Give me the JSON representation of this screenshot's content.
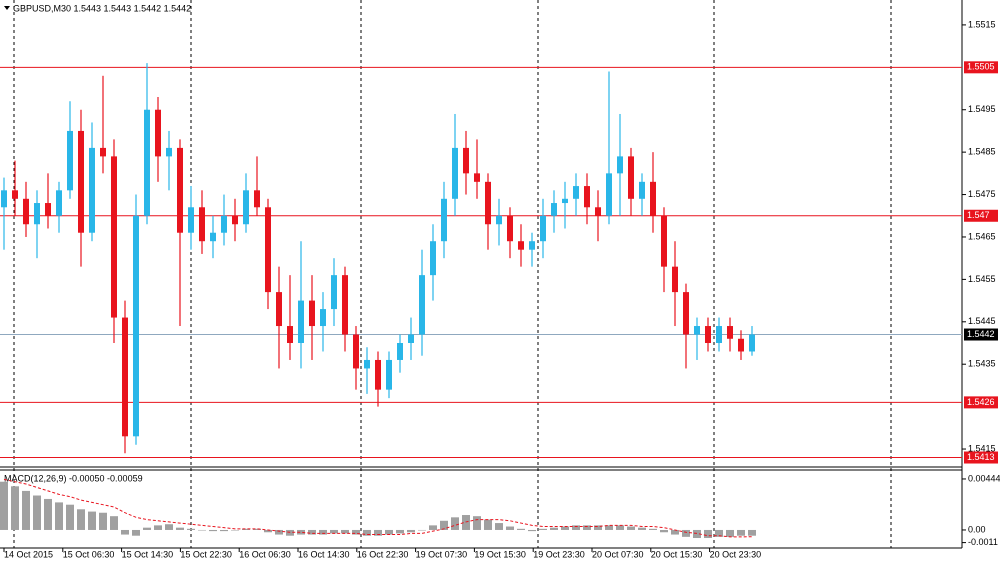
{
  "chart_data": {
    "type": "candlestick",
    "title": "GBPUSD,M30  1.5443 1.5443 1.5442 1.5442",
    "bull_color": "#29b6e8",
    "bear_color": "#e8141e",
    "ylim": [
      1.5411,
      1.55204
    ],
    "yticks": [
      1.5515,
      1.5495,
      1.5485,
      1.5475,
      1.5465,
      1.5455,
      1.5445,
      1.5435,
      1.5415
    ],
    "levels": [
      1.5505,
      1.547,
      1.5426,
      1.5413
    ],
    "level_color": "#e8141e",
    "current_price": 1.5442,
    "x_labels": [
      "14 Oct 2015",
      "15 Oct 06:30",
      "15 Oct 14:30",
      "15 Oct 22:30",
      "16 Oct 06:30",
      "16 Oct 14:30",
      "16 Oct 22:30",
      "19 Oct 07:30",
      "19 Oct 15:30",
      "19 Oct 23:30",
      "20 Oct 07:30",
      "20 Oct 15:30",
      "20 Oct 23:30"
    ],
    "ohlc": [
      [
        1.5472,
        1.5479,
        1.5462,
        1.5476
      ],
      [
        1.5476,
        1.5483,
        1.547,
        1.5474
      ],
      [
        1.5474,
        1.5478,
        1.5465,
        1.5468
      ],
      [
        1.5468,
        1.5476,
        1.546,
        1.5473
      ],
      [
        1.5473,
        1.548,
        1.5467,
        1.547
      ],
      [
        1.547,
        1.5478,
        1.5466,
        1.5476
      ],
      [
        1.5476,
        1.5497,
        1.5474,
        1.549
      ],
      [
        1.549,
        1.5495,
        1.5458,
        1.5466
      ],
      [
        1.5466,
        1.5492,
        1.5464,
        1.5486
      ],
      [
        1.5486,
        1.5503,
        1.548,
        1.5484
      ],
      [
        1.5484,
        1.5488,
        1.544,
        1.5446
      ],
      [
        1.5446,
        1.545,
        1.5414,
        1.5418
      ],
      [
        1.5418,
        1.5475,
        1.5416,
        1.547
      ],
      [
        1.547,
        1.5506,
        1.5468,
        1.5495
      ],
      [
        1.5495,
        1.5498,
        1.5478,
        1.5484
      ],
      [
        1.5484,
        1.549,
        1.5476,
        1.5486
      ],
      [
        1.5486,
        1.5488,
        1.5444,
        1.5466
      ],
      [
        1.5466,
        1.5477,
        1.5462,
        1.5472
      ],
      [
        1.5472,
        1.5476,
        1.5461,
        1.5464
      ],
      [
        1.5464,
        1.547,
        1.546,
        1.5466
      ],
      [
        1.5466,
        1.5475,
        1.5463,
        1.547
      ],
      [
        1.547,
        1.5474,
        1.5464,
        1.5468
      ],
      [
        1.5468,
        1.548,
        1.5466,
        1.5476
      ],
      [
        1.5476,
        1.5484,
        1.547,
        1.5472
      ],
      [
        1.5472,
        1.5474,
        1.5448,
        1.5452
      ],
      [
        1.5452,
        1.5458,
        1.5434,
        1.5444
      ],
      [
        1.5444,
        1.5456,
        1.5436,
        1.544
      ],
      [
        1.544,
        1.5464,
        1.5434,
        1.545
      ],
      [
        1.545,
        1.5456,
        1.5436,
        1.5444
      ],
      [
        1.5444,
        1.5452,
        1.5438,
        1.5448
      ],
      [
        1.5448,
        1.546,
        1.5444,
        1.5456
      ],
      [
        1.5456,
        1.5458,
        1.5438,
        1.5442
      ],
      [
        1.5442,
        1.5444,
        1.5429,
        1.5434
      ],
      [
        1.5434,
        1.5439,
        1.5428,
        1.5436
      ],
      [
        1.5436,
        1.5438,
        1.5425,
        1.5429
      ],
      [
        1.5429,
        1.5438,
        1.5427,
        1.5436
      ],
      [
        1.5436,
        1.5442,
        1.5433,
        1.544
      ],
      [
        1.544,
        1.5446,
        1.5436,
        1.5442
      ],
      [
        1.5442,
        1.5462,
        1.5437,
        1.5456
      ],
      [
        1.5456,
        1.5468,
        1.545,
        1.5464
      ],
      [
        1.5464,
        1.5478,
        1.546,
        1.5474
      ],
      [
        1.5474,
        1.5494,
        1.547,
        1.5486
      ],
      [
        1.5486,
        1.549,
        1.5475,
        1.548
      ],
      [
        1.548,
        1.5488,
        1.5474,
        1.5478
      ],
      [
        1.5478,
        1.548,
        1.5462,
        1.5468
      ],
      [
        1.5468,
        1.5474,
        1.5463,
        1.547
      ],
      [
        1.547,
        1.5472,
        1.546,
        1.5464
      ],
      [
        1.5464,
        1.5468,
        1.5458,
        1.5462
      ],
      [
        1.5462,
        1.5466,
        1.5458,
        1.5464
      ],
      [
        1.5464,
        1.5474,
        1.546,
        1.547
      ],
      [
        1.547,
        1.5476,
        1.5466,
        1.5473
      ],
      [
        1.5473,
        1.5478,
        1.5467,
        1.5474
      ],
      [
        1.5474,
        1.548,
        1.547,
        1.5477
      ],
      [
        1.5477,
        1.548,
        1.5468,
        1.5472
      ],
      [
        1.5472,
        1.5476,
        1.5464,
        1.547
      ],
      [
        1.547,
        1.5504,
        1.5468,
        1.548
      ],
      [
        1.548,
        1.5494,
        1.547,
        1.5484
      ],
      [
        1.5484,
        1.5486,
        1.547,
        1.5474
      ],
      [
        1.5474,
        1.548,
        1.547,
        1.5478
      ],
      [
        1.5478,
        1.5485,
        1.5466,
        1.547
      ],
      [
        1.547,
        1.5472,
        1.5452,
        1.5458
      ],
      [
        1.5458,
        1.5464,
        1.5444,
        1.5452
      ],
      [
        1.5452,
        1.5454,
        1.5434,
        1.5442
      ],
      [
        1.5442,
        1.5446,
        1.5436,
        1.5444
      ],
      [
        1.5444,
        1.5446,
        1.5438,
        1.544
      ],
      [
        1.544,
        1.5446,
        1.5438,
        1.5444
      ],
      [
        1.5444,
        1.5446,
        1.5438,
        1.5441
      ],
      [
        1.5441,
        1.5443,
        1.5436,
        1.5438
      ],
      [
        1.5438,
        1.5444,
        1.5437,
        1.5442
      ]
    ],
    "macd": {
      "label": "MACD(12,26,9) -0.00050 -0.00059",
      "ylim": [
        -0.00157,
        0.00522
      ],
      "yticks": [
        0.00444,
        {
          "value": 0,
          "label": "0.00"
        },
        -0.0011
      ],
      "hist_color": "#a0a0a0",
      "signal_color": "#e8141e",
      "values": [
        0.0042,
        0.0038,
        0.0034,
        0.003,
        0.0027,
        0.0024,
        0.0022,
        0.0018,
        0.0016,
        0.0015,
        0.0012,
        -0.0004,
        -0.0005,
        0.0002,
        0.0004,
        0.0005,
        0.0002,
        0.0001,
        0,
        -0.0001,
        -0.0001,
        0,
        0.0001,
        0.0001,
        -0.0002,
        -0.0004,
        -0.0005,
        -0.0004,
        -0.0004,
        -0.0004,
        -0.0003,
        -0.0003,
        -0.0004,
        -0.0005,
        -0.0005,
        -0.0004,
        -0.0003,
        -0.0002,
        0,
        0.0004,
        0.0008,
        0.0011,
        0.0013,
        0.0012,
        0.0009,
        0.0006,
        0.0003,
        0.0001,
        -0.0001,
        0.0001,
        0.0002,
        0.0003,
        0.0004,
        0.0004,
        0.0004,
        0.0004,
        0.0004,
        0.0003,
        0.0002,
        0.0001,
        -0.0002,
        -0.0004,
        -0.0006,
        -0.0007,
        -0.0007,
        -0.0006,
        -0.0006,
        -0.0005,
        -0.0005
      ],
      "signal": [
        0.0044,
        0.0042,
        0.004,
        0.0037,
        0.0034,
        0.0031,
        0.0029,
        0.0026,
        0.0024,
        0.0022,
        0.002,
        0.0015,
        0.0011,
        0.0009,
        0.0008,
        0.0007,
        0.0006,
        0.0005,
        0.0004,
        0.0003,
        0.0002,
        0.0001,
        0.0001,
        0.0001,
        0,
        -0.0001,
        -0.0002,
        -0.0002,
        -0.0003,
        -0.0003,
        -0.0003,
        -0.0003,
        -0.0003,
        -0.0004,
        -0.0004,
        -0.0004,
        -0.0004,
        -0.0003,
        -0.0003,
        -0.0001,
        0.0001,
        0.0004,
        0.0007,
        0.0009,
        0.0009,
        0.0009,
        0.0008,
        0.0006,
        0.0004,
        0.0003,
        0.0003,
        0.0003,
        0.0003,
        0.0003,
        0.0003,
        0.0004,
        0.0004,
        0.0004,
        0.0003,
        0.0003,
        0.0002,
        0,
        -0.0002,
        -0.0003,
        -0.0005,
        -0.0005,
        -0.0006,
        -0.0006,
        -0.00059
      ]
    }
  }
}
